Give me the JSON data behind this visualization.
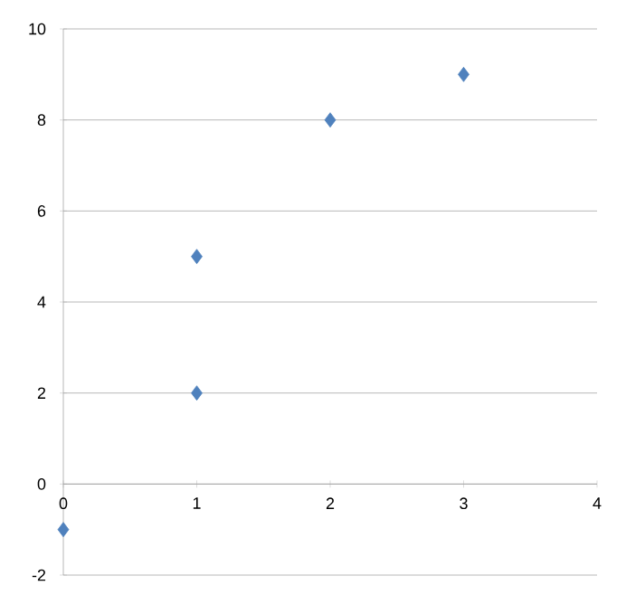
{
  "chart_data": {
    "type": "scatter",
    "x": [
      0,
      1,
      1,
      2,
      3
    ],
    "values": [
      -1,
      2,
      5,
      8,
      9
    ],
    "color": "#4f81bd",
    "marker": "diamond",
    "xlim": [
      0,
      4
    ],
    "ylim": [
      -2,
      10
    ],
    "xticks": [
      0,
      1,
      2,
      3,
      4
    ],
    "yticks": [
      -2,
      0,
      2,
      4,
      6,
      8,
      10
    ],
    "grid": "y"
  }
}
